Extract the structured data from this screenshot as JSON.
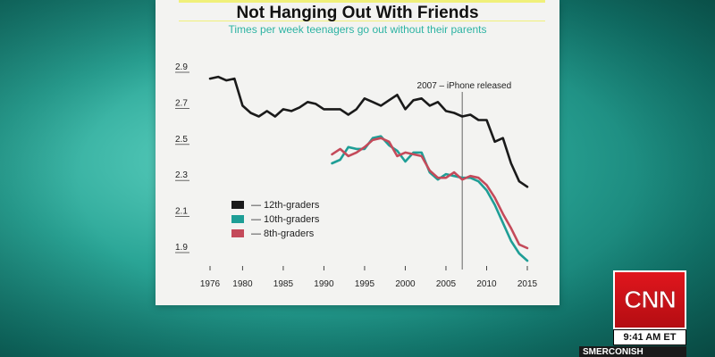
{
  "show": {
    "network": "CNN",
    "time": "9:41 AM ET",
    "program": "SMERCONISH"
  },
  "chart_data": {
    "type": "line",
    "title": "Not Hanging Out With Friends",
    "subtitle": "Times per week teenagers go out without their parents",
    "xlabel": "",
    "ylabel": "",
    "xlim": [
      1975,
      2016
    ],
    "ylim": [
      1.8,
      3.0
    ],
    "x_ticks": [
      1976,
      1980,
      1985,
      1990,
      1995,
      2000,
      2005,
      2010,
      2015
    ],
    "y_ticks": [
      2.9,
      2.7,
      2.5,
      2.3,
      2.1,
      1.9
    ],
    "grid": false,
    "legend_position": "left",
    "annotation": {
      "x": 2007,
      "label": "2007 – iPhone released"
    },
    "series": [
      {
        "name": "— 12th-graders",
        "color": "#1a1a1a",
        "x": [
          1976,
          1977,
          1978,
          1979,
          1980,
          1981,
          1982,
          1983,
          1984,
          1985,
          1986,
          1987,
          1988,
          1989,
          1990,
          1991,
          1992,
          1993,
          1994,
          1995,
          1996,
          1997,
          1998,
          1999,
          2000,
          2001,
          2002,
          2003,
          2004,
          2005,
          2006,
          2007,
          2008,
          2009,
          2010,
          2011,
          2012,
          2013,
          2014,
          2015
        ],
        "values": [
          2.86,
          2.87,
          2.85,
          2.86,
          2.71,
          2.67,
          2.65,
          2.68,
          2.65,
          2.69,
          2.68,
          2.7,
          2.73,
          2.72,
          2.69,
          2.69,
          2.69,
          2.66,
          2.69,
          2.75,
          2.73,
          2.71,
          2.74,
          2.77,
          2.69,
          2.74,
          2.75,
          2.71,
          2.73,
          2.68,
          2.67,
          2.65,
          2.66,
          2.63,
          2.63,
          2.51,
          2.53,
          2.39,
          2.29,
          2.26
        ]
      },
      {
        "name": "— 10th-graders",
        "color": "#1e9e96",
        "x": [
          1991,
          1992,
          1993,
          1994,
          1995,
          1996,
          1997,
          1998,
          1999,
          2000,
          2001,
          2002,
          2003,
          2004,
          2005,
          2006,
          2007,
          2008,
          2009,
          2010,
          2011,
          2012,
          2013,
          2014,
          2015
        ],
        "values": [
          2.39,
          2.41,
          2.48,
          2.47,
          2.47,
          2.53,
          2.54,
          2.49,
          2.46,
          2.4,
          2.45,
          2.45,
          2.34,
          2.3,
          2.33,
          2.32,
          2.31,
          2.31,
          2.29,
          2.24,
          2.16,
          2.06,
          1.96,
          1.89,
          1.85
        ]
      },
      {
        "name": "— 8th-graders",
        "color": "#c44a5a",
        "x": [
          1991,
          1992,
          1993,
          1994,
          1995,
          1996,
          1997,
          1998,
          1999,
          2000,
          2001,
          2002,
          2003,
          2004,
          2005,
          2006,
          2007,
          2008,
          2009,
          2010,
          2011,
          2012,
          2013,
          2014,
          2015
        ],
        "values": [
          2.44,
          2.47,
          2.43,
          2.45,
          2.48,
          2.52,
          2.53,
          2.51,
          2.43,
          2.45,
          2.44,
          2.43,
          2.35,
          2.31,
          2.31,
          2.34,
          2.3,
          2.32,
          2.31,
          2.27,
          2.2,
          2.11,
          2.03,
          1.94,
          1.92
        ]
      }
    ]
  }
}
